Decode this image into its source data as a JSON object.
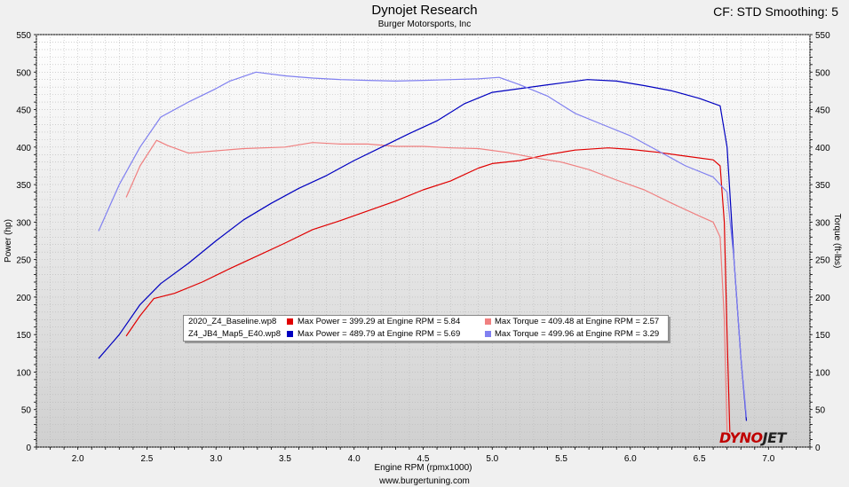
{
  "header": {
    "title": "Dynojet Research",
    "subtitle": "Burger Motorsports, Inc",
    "corner": "CF: STD Smoothing: 5",
    "footer": "www.burgertuning.com",
    "logo_left": "DYNO",
    "logo_right": "JET"
  },
  "legend": {
    "rows": [
      {
        "file": "2020_Z4_Baseline.wp8",
        "power": "Max Power = 399.29 at Engine RPM = 5.84",
        "torque": "Max Torque = 409.48 at Engine RPM = 2.57",
        "power_color": "#e00000",
        "torque_color": "#f08080"
      },
      {
        "file": "Z4_JB4_Map5_E40.wp8",
        "power": "Max Power = 489.79 at Engine RPM = 5.69",
        "torque": "Max Torque = 499.96 at Engine RPM = 3.29",
        "power_color": "#0000c0",
        "torque_color": "#8080f0"
      }
    ]
  },
  "chart_data": {
    "type": "line",
    "xlabel": "Engine RPM (rpmx1000)",
    "ylabel": "Power (hp)",
    "y2label": "Torque (ft-lbs)",
    "xlim": [
      1.7,
      7.3
    ],
    "ylim": [
      0,
      550
    ],
    "y2lim": [
      0,
      550
    ],
    "xticks": [
      "2.0",
      "2.5",
      "3.0",
      "3.5",
      "4.0",
      "4.5",
      "5.0",
      "5.5",
      "6.0",
      "6.5",
      "7.0"
    ],
    "yticks": [
      "0",
      "50",
      "100",
      "150",
      "200",
      "250",
      "300",
      "350",
      "400",
      "450",
      "500",
      "550"
    ],
    "grid": true,
    "series": [
      {
        "name": "2020_Z4_Baseline.wp8",
        "color": "#e00000",
        "axis": "left",
        "x": [
          2.35,
          2.45,
          2.55,
          2.7,
          2.9,
          3.1,
          3.3,
          3.5,
          3.7,
          3.9,
          4.1,
          4.3,
          4.5,
          4.7,
          4.9,
          5.0,
          5.2,
          5.4,
          5.6,
          5.84,
          6.0,
          6.2,
          6.4,
          6.6,
          6.65,
          6.68,
          6.7,
          6.72
        ],
        "y": [
          148,
          175,
          198,
          205,
          220,
          238,
          255,
          272,
          290,
          302,
          315,
          328,
          343,
          355,
          372,
          378,
          382,
          390,
          396,
          399,
          397,
          393,
          388,
          383,
          375,
          300,
          150,
          20
        ]
      },
      {
        "name": "2020_Z4_Baseline.wp8",
        "color": "#f08080",
        "axis": "right",
        "x": [
          2.35,
          2.45,
          2.57,
          2.65,
          2.8,
          3.0,
          3.2,
          3.5,
          3.7,
          3.9,
          4.1,
          4.3,
          4.5,
          4.7,
          4.9,
          5.1,
          5.3,
          5.5,
          5.7,
          5.9,
          6.1,
          6.3,
          6.5,
          6.6,
          6.65,
          6.68,
          6.7
        ],
        "y": [
          333,
          375,
          409,
          402,
          392,
          395,
          398,
          400,
          406,
          404,
          404,
          401,
          401,
          399,
          398,
          393,
          386,
          380,
          370,
          356,
          343,
          325,
          308,
          300,
          280,
          170,
          20
        ]
      },
      {
        "name": "Z4_JB4_Map5_E40.wp8",
        "color": "#0000c0",
        "axis": "left",
        "x": [
          2.15,
          2.3,
          2.45,
          2.6,
          2.8,
          3.0,
          3.2,
          3.4,
          3.6,
          3.8,
          4.0,
          4.2,
          4.4,
          4.6,
          4.8,
          5.0,
          5.2,
          5.4,
          5.69,
          5.9,
          6.1,
          6.3,
          6.5,
          6.65,
          6.7,
          6.75,
          6.8,
          6.84
        ],
        "y": [
          118,
          150,
          190,
          218,
          245,
          275,
          303,
          325,
          345,
          362,
          382,
          400,
          418,
          435,
          458,
          473,
          478,
          483,
          490,
          488,
          482,
          475,
          465,
          455,
          400,
          250,
          120,
          35
        ]
      },
      {
        "name": "Z4_JB4_Map5_E40.wp8",
        "color": "#8080f0",
        "axis": "right",
        "x": [
          2.15,
          2.3,
          2.45,
          2.6,
          2.8,
          3.0,
          3.1,
          3.29,
          3.5,
          3.7,
          3.9,
          4.1,
          4.3,
          4.5,
          4.7,
          4.9,
          5.05,
          5.2,
          5.4,
          5.6,
          5.8,
          6.0,
          6.2,
          6.4,
          6.6,
          6.7,
          6.75,
          6.8,
          6.84
        ],
        "y": [
          288,
          350,
          400,
          440,
          460,
          478,
          488,
          500,
          495,
          492,
          490,
          489,
          488,
          489,
          490,
          491,
          493,
          483,
          468,
          445,
          430,
          415,
          395,
          375,
          360,
          340,
          250,
          120,
          40
        ]
      }
    ]
  }
}
